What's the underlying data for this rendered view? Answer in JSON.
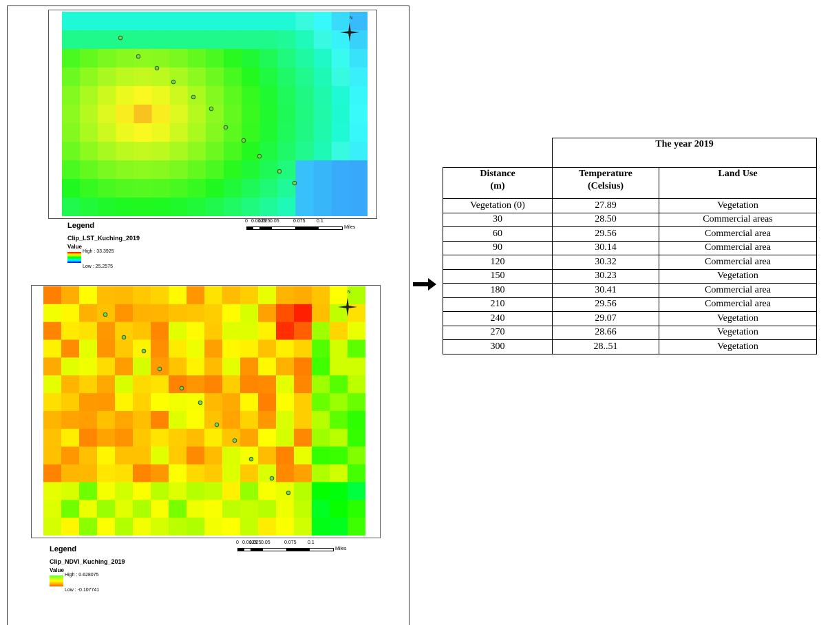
{
  "maps": [
    {
      "legend_title": "Legend",
      "layer": "Clip_LST_Kuching_2019",
      "value_label": "Value",
      "high": "High : 33.3925",
      "low": "Low : 25.2575",
      "scale_labels": [
        "0",
        "0.0125",
        "0.025",
        "0.05",
        "0.075",
        "0.1"
      ],
      "scale_unit": "Miles",
      "north": "N"
    },
    {
      "legend_title": "Legend",
      "layer": "Clip_NDVI_Kuching_2019",
      "value_label": "Value",
      "high": "High : 0.628075",
      "low": "Low : -0.107741",
      "scale_labels": [
        "0",
        "0.0125",
        "0.025",
        "0.05",
        "0.075",
        "0.1"
      ],
      "scale_unit": "Miles",
      "north": "N"
    }
  ],
  "table": {
    "group_header": "The year 2019",
    "columns": [
      "Distance\n(m)",
      "Temperature\n(Celsius)",
      "Land Use"
    ],
    "rows": [
      [
        "Vegetation (0)",
        "27.89",
        "Vegetation"
      ],
      [
        "30",
        "28.50",
        "Commercial areas"
      ],
      [
        "60",
        "29.56",
        "Commercial area"
      ],
      [
        "90",
        "30.14",
        "Commercial area"
      ],
      [
        "120",
        "30.32",
        "Commercial area"
      ],
      [
        "150",
        "30.23",
        "Vegetation"
      ],
      [
        "180",
        "30.41",
        "Commercial area"
      ],
      [
        "210",
        "29.56",
        "Commercial area"
      ],
      [
        "240",
        "29.07",
        "Vegetation"
      ],
      [
        "270",
        "28.66",
        "Vegetation"
      ],
      [
        "300",
        "28..51",
        "Vegetation"
      ]
    ]
  }
}
